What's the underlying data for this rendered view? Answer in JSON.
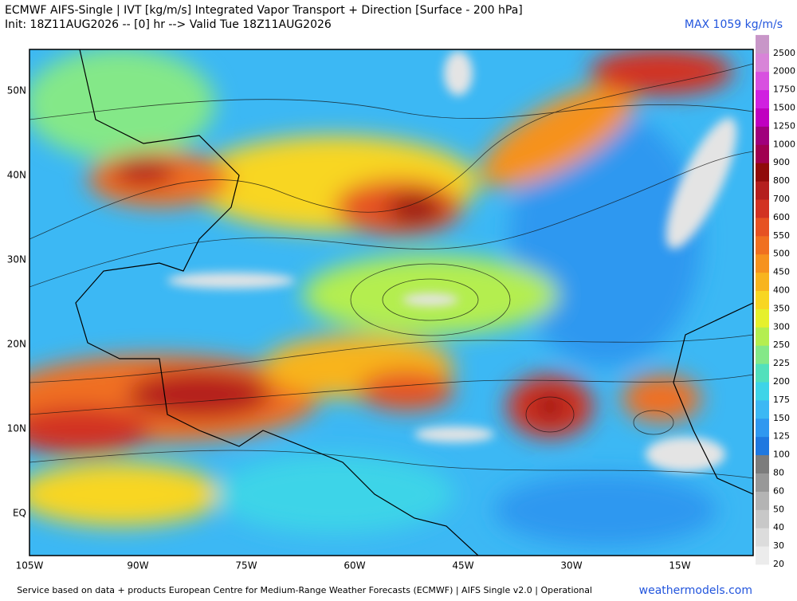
{
  "header": {
    "title": "ECMWF AIFS-Single | IVT [kg/m/s] Integrated Vapor Transport + Direction [Surface - 200 hPa]",
    "subtitle": "Init: 18Z11AUG2026 -- [0] hr --> Valid Tue 18Z11AUG2026",
    "max_label": "MAX 1059 kg/m/s"
  },
  "map": {
    "lat_labels": [
      "50N",
      "40N",
      "30N",
      "20N",
      "10N",
      "EQ"
    ],
    "lon_labels": [
      "105W",
      "90W",
      "75W",
      "60W",
      "45W",
      "30W",
      "15W"
    ]
  },
  "colorbar": {
    "labels": [
      "20",
      "30",
      "40",
      "50",
      "60",
      "80",
      "100",
      "125",
      "150",
      "175",
      "200",
      "225",
      "250",
      "300",
      "350",
      "400",
      "450",
      "500",
      "550",
      "600",
      "700",
      "800",
      "900",
      "1000",
      "1250",
      "1500",
      "1750",
      "2000",
      "2500"
    ],
    "colors": [
      "#ececec",
      "#dcdcdc",
      "#c8c8c8",
      "#b4b4b4",
      "#989898",
      "#7c7c7c",
      "#1f78e0",
      "#2f98f0",
      "#3cb8f4",
      "#3ed4e8",
      "#52e0bc",
      "#84e888",
      "#b4ee50",
      "#e6f02c",
      "#f8d622",
      "#f8b41e",
      "#f6921e",
      "#f07020",
      "#e65222",
      "#d23222",
      "#b41e1e",
      "#900a0a",
      "#a00050",
      "#a0007c",
      "#c000c0",
      "#d020e0",
      "#d850e0",
      "#d884d8",
      "#c896c8"
    ]
  },
  "footer": {
    "credit": "Service based on data + products European Centre for Medium-Range Weather Forecasts (ECMWF) | AIFS Single v2.0 | Operational",
    "brand": "weathermodels.com"
  }
}
